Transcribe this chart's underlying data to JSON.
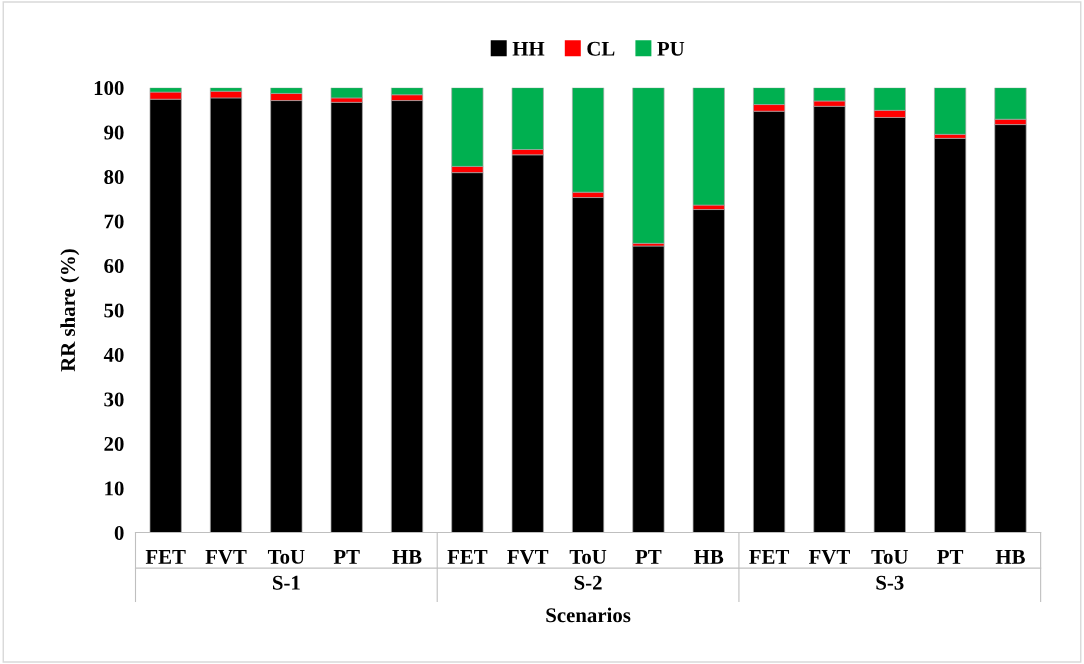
{
  "chart_data": {
    "type": "bar",
    "stacked": true,
    "xlabel": "Scenarios",
    "ylabel": "RR share (%)",
    "categories": [
      "FET",
      "FVT",
      "ToU",
      "PT",
      "HB",
      "FET",
      "FVT",
      "ToU",
      "PT",
      "HB",
      "FET",
      "FVT",
      "ToU",
      "PT",
      "HB"
    ],
    "series": [
      {
        "name": "HH",
        "color": "#000000",
        "values": [
          97.4,
          97.7,
          97.1,
          96.7,
          97.1,
          80.9,
          84.9,
          75.3,
          64.4,
          72.6,
          94.7,
          95.8,
          93.3,
          88.6,
          91.7
        ]
      },
      {
        "name": "CL",
        "color": "#ff0000",
        "values": [
          1.6,
          1.5,
          1.6,
          1.0,
          1.3,
          1.4,
          1.2,
          1.2,
          0.6,
          1.0,
          1.5,
          1.2,
          1.6,
          0.9,
          1.2
        ]
      },
      {
        "name": "PU",
        "color": "#00b050",
        "values": [
          1.0,
          0.8,
          1.3,
          2.3,
          1.6,
          17.7,
          13.9,
          23.5,
          35.0,
          26.4,
          3.8,
          3.0,
          5.1,
          10.5,
          7.1
        ]
      }
    ],
    "annotations": [
      "S-1",
      "S-2",
      "S-3"
    ],
    "ylim": [
      0,
      100
    ],
    "yticks": [
      0,
      10,
      20,
      30,
      40,
      50,
      60,
      70,
      80,
      90,
      100
    ],
    "grid": false,
    "legend": "top"
  }
}
